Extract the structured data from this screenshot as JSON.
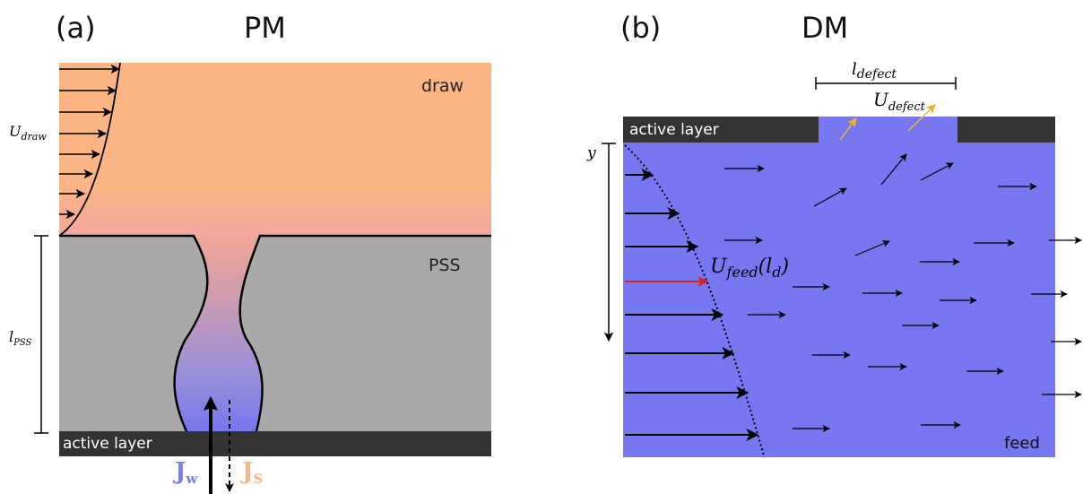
{
  "panel_a": {
    "label": "(a)",
    "title": "PM",
    "region_draw": "draw",
    "region_pss": "PSS",
    "active_layer": "active layer",
    "u_draw": {
      "symbol": "U",
      "sub": "draw"
    },
    "l_pss": {
      "symbol": "l",
      "sub": "PSS"
    },
    "jw": {
      "symbol": "J",
      "sub": "w"
    },
    "js": {
      "symbol": "J",
      "sub": "S"
    }
  },
  "panel_b": {
    "label": "(b)",
    "title": "DM",
    "active_layer": "active layer",
    "region_feed": "feed",
    "y_label": "y",
    "l_defect": {
      "symbol": "l",
      "sub": "defect"
    },
    "u_defect": {
      "symbol": "U",
      "sub": "defect"
    },
    "u_feed": {
      "symbol": "U",
      "sub": "feed",
      "arg": "(l",
      "arg_sub": "d",
      "arg_close": ")"
    }
  },
  "colors": {
    "draw": "#fbb584",
    "pss": "#a9a9a9",
    "feed": "#7777f1",
    "active_layer": "#333333",
    "jw": "#7d7de8",
    "js": "#f7b38a",
    "highlight_arrow": "#e0221c",
    "defect_arrow": "#f0b42a"
  }
}
